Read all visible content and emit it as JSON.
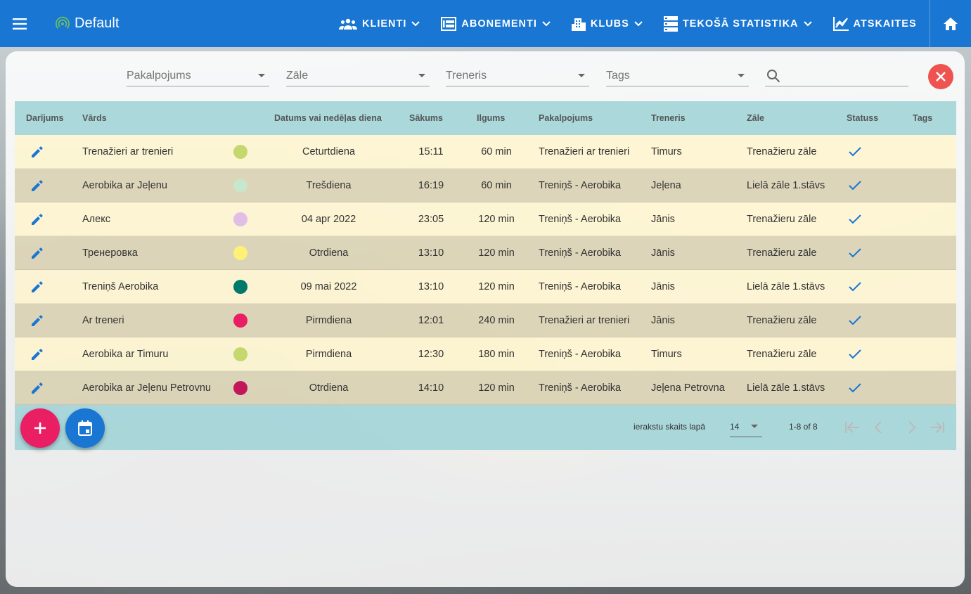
{
  "app": {
    "brand_name": "Default"
  },
  "nav": [
    {
      "label": "KLIENTI",
      "icon": "people-icon",
      "has_dropdown": true
    },
    {
      "label": "ABONEMENTI",
      "icon": "grid-icon",
      "has_dropdown": true
    },
    {
      "label": "KLUBS",
      "icon": "building-icon",
      "has_dropdown": true
    },
    {
      "label": "TEKOŠĀ STATISTIKA",
      "icon": "server-icon",
      "has_dropdown": true
    },
    {
      "label": "ATSKAITES",
      "icon": "chart-icon",
      "has_dropdown": false
    }
  ],
  "filters": {
    "service": "Pakalpojums",
    "hall": "Zāle",
    "trainer": "Treneris",
    "tags": "Tags",
    "search_value": ""
  },
  "table": {
    "headers": {
      "action": "Darījums",
      "name": "Vārds",
      "date": "Datums vai nedēļas diena",
      "start": "Sākums",
      "duration": "Ilgums",
      "service": "Pakalpojums",
      "trainer": "Treneris",
      "hall": "Zāle",
      "status": "Statuss",
      "tags": "Tags"
    },
    "rows": [
      {
        "name": "Trenažieri ar trenieri",
        "color": "#c5d86d",
        "date": "Ceturtdiena",
        "start": "15:11",
        "duration": "60 min",
        "service": "Trenažieri ar trenieri",
        "trainer": "Timurs",
        "hall": "Trenažieru zāle",
        "status": "active"
      },
      {
        "name": "Aerobika ar Jeļenu",
        "color": "#c8e6c9",
        "date": "Trešdiena",
        "start": "16:19",
        "duration": "60 min",
        "service": "Treniņš - Aerobika",
        "trainer": "Jeļena",
        "hall": "Lielā zāle 1.stāvs",
        "status": "active"
      },
      {
        "name": "Алекс",
        "color": "#e1bee7",
        "date": "04 apr 2022",
        "start": "23:05",
        "duration": "120 min",
        "service": "Treniņš - Aerobika",
        "trainer": "Jānis",
        "hall": "Trenažieru zāle",
        "status": "active"
      },
      {
        "name": "Тренеровка",
        "color": "#fff176",
        "date": "Otrdiena",
        "start": "13:10",
        "duration": "120 min",
        "service": "Treniņš - Aerobika",
        "trainer": "Jānis",
        "hall": "Trenažieru zāle",
        "status": "active"
      },
      {
        "name": "Treniņš Aerobika",
        "color": "#00796b",
        "date": "09 mai 2022",
        "start": "13:10",
        "duration": "120 min",
        "service": "Treniņš - Aerobika",
        "trainer": "Jānis",
        "hall": "Lielā zāle 1.stāvs",
        "status": "active"
      },
      {
        "name": "Ar treneri",
        "color": "#e91e63",
        "date": "Pirmdiena",
        "start": "12:01",
        "duration": "240 min",
        "service": "Trenažieri ar trenieri",
        "trainer": "Jānis",
        "hall": "Trenažieru zāle",
        "status": "active"
      },
      {
        "name": "Aerobika ar Timuru",
        "color": "#c5d86d",
        "date": "Pirmdiena",
        "start": "12:30",
        "duration": "180 min",
        "service": "Treniņš - Aerobika",
        "trainer": "Timurs",
        "hall": "Trenažieru zāle",
        "status": "active"
      },
      {
        "name": "Aerobika ar Jeļenu Petrovnu",
        "color": "#c2185b",
        "date": "Otrdiena",
        "start": "14:10",
        "duration": "120 min",
        "service": "Treniņš - Aerobika",
        "trainer": "Jeļena Petrovna",
        "hall": "Lielā zāle 1.stāvs",
        "status": "active"
      }
    ]
  },
  "pagination": {
    "per_page_label": "ierakstu skaits lapā",
    "per_page_value": "14",
    "range": "1-8 of 8"
  },
  "colors": {
    "primary": "#1976d2",
    "accent": "#e91e63",
    "close": "#ef5350",
    "header_bg": "#9ed2d6",
    "brand_icon": "#66bb6a"
  }
}
